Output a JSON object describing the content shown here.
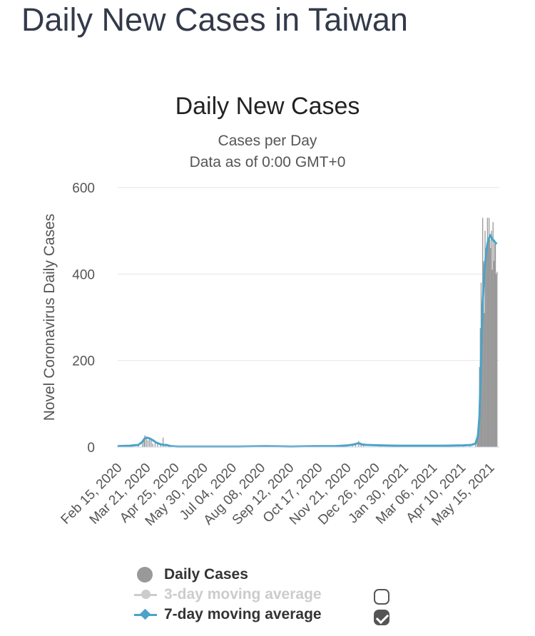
{
  "page": {
    "title": "Daily New Cases in Taiwan"
  },
  "chart_data": {
    "type": "bar",
    "title": "Daily New Cases",
    "subtitle": "Cases per Day",
    "subtitle2": "Data as of 0:00 GMT+0",
    "ylabel": "Novel Coronavirus Daily Cases",
    "xlabel": "",
    "ylim": [
      0,
      600
    ],
    "yticks": [
      0,
      200,
      400,
      600
    ],
    "grid": true,
    "xstart": "2020-02-15",
    "xend": "2021-06-09",
    "xtick_labels": [
      "Feb 15, 2020",
      "Mar 21, 2020",
      "Apr 25, 2020",
      "May 30, 2020",
      "Jul 04, 2020",
      "Aug 08, 2020",
      "Sep 12, 2020",
      "Oct 17, 2020",
      "Nov 21, 2020",
      "Dec 26, 2020",
      "Jan 30, 2021",
      "Mar 06, 2021",
      "Apr 10, 2021",
      "May 15, 2021"
    ],
    "series": [
      {
        "name": "Daily Cases",
        "kind": "bar",
        "color": "#999999",
        "points": [
          [
            "2020-02-15",
            2
          ],
          [
            "2020-02-25",
            3
          ],
          [
            "2020-03-05",
            2
          ],
          [
            "2020-03-12",
            5
          ],
          [
            "2020-03-17",
            10
          ],
          [
            "2020-03-19",
            20
          ],
          [
            "2020-03-20",
            27
          ],
          [
            "2020-03-22",
            23
          ],
          [
            "2020-03-24",
            16
          ],
          [
            "2020-03-26",
            17
          ],
          [
            "2020-03-28",
            15
          ],
          [
            "2020-03-30",
            8
          ],
          [
            "2020-04-02",
            9
          ],
          [
            "2020-04-05",
            8
          ],
          [
            "2020-04-09",
            7
          ],
          [
            "2020-04-12",
            22
          ],
          [
            "2020-04-15",
            4
          ],
          [
            "2020-04-19",
            3
          ],
          [
            "2020-04-22",
            2
          ],
          [
            "2020-05-15",
            1
          ],
          [
            "2020-07-01",
            1
          ],
          [
            "2020-08-20",
            2
          ],
          [
            "2020-10-10",
            2
          ],
          [
            "2020-11-18",
            3
          ],
          [
            "2020-12-06",
            6
          ],
          [
            "2020-12-10",
            9
          ],
          [
            "2020-12-14",
            14
          ],
          [
            "2020-12-17",
            10
          ],
          [
            "2020-12-20",
            4
          ],
          [
            "2021-01-10",
            4
          ],
          [
            "2021-01-25",
            3
          ],
          [
            "2021-02-15",
            2
          ],
          [
            "2021-03-20",
            4
          ],
          [
            "2021-04-10",
            3
          ],
          [
            "2021-04-25",
            5
          ],
          [
            "2021-05-03",
            4
          ],
          [
            "2021-05-10",
            8
          ],
          [
            "2021-05-12",
            15
          ],
          [
            "2021-05-13",
            20
          ],
          [
            "2021-05-14",
            45
          ],
          [
            "2021-05-15",
            185
          ],
          [
            "2021-05-16",
            275
          ],
          [
            "2021-05-17",
            380
          ],
          [
            "2021-05-18",
            260
          ],
          [
            "2021-05-19",
            530
          ],
          [
            "2021-05-20",
            430
          ],
          [
            "2021-05-21",
            310
          ],
          [
            "2021-05-22",
            500
          ],
          [
            "2021-05-23",
            460
          ],
          [
            "2021-05-24",
            450
          ],
          [
            "2021-05-25",
            530
          ],
          [
            "2021-05-26",
            470
          ],
          [
            "2021-05-27",
            530
          ],
          [
            "2021-05-28",
            480
          ],
          [
            "2021-05-29",
            460
          ],
          [
            "2021-05-30",
            500
          ],
          [
            "2021-05-31",
            410
          ],
          [
            "2021-06-01",
            520
          ],
          [
            "2021-06-02",
            430
          ],
          [
            "2021-06-03",
            470
          ],
          [
            "2021-06-04",
            470
          ],
          [
            "2021-06-05",
            400
          ],
          [
            "2021-06-06",
            405
          ]
        ]
      },
      {
        "name": "3-day moving average",
        "kind": "line",
        "color": "#cccccc",
        "visible": false,
        "points": []
      },
      {
        "name": "7-day moving average",
        "kind": "line",
        "color": "#4ba3c7",
        "visible": true,
        "points": [
          [
            "2020-02-15",
            2
          ],
          [
            "2020-03-01",
            3
          ],
          [
            "2020-03-12",
            5
          ],
          [
            "2020-03-17",
            12
          ],
          [
            "2020-03-20",
            20
          ],
          [
            "2020-03-22",
            22
          ],
          [
            "2020-03-26",
            20
          ],
          [
            "2020-03-30",
            16
          ],
          [
            "2020-04-03",
            11
          ],
          [
            "2020-04-08",
            7
          ],
          [
            "2020-04-12",
            5
          ],
          [
            "2020-04-16",
            5
          ],
          [
            "2020-04-22",
            2
          ],
          [
            "2020-05-01",
            1
          ],
          [
            "2020-06-01",
            1
          ],
          [
            "2020-07-15",
            1
          ],
          [
            "2020-08-20",
            2
          ],
          [
            "2020-09-20",
            1
          ],
          [
            "2020-10-20",
            2
          ],
          [
            "2020-11-15",
            2
          ],
          [
            "2020-12-01",
            4
          ],
          [
            "2020-12-08",
            6
          ],
          [
            "2020-12-14",
            9
          ],
          [
            "2020-12-18",
            6
          ],
          [
            "2020-12-24",
            5
          ],
          [
            "2021-01-10",
            4
          ],
          [
            "2021-02-01",
            3
          ],
          [
            "2021-03-01",
            3
          ],
          [
            "2021-04-01",
            3
          ],
          [
            "2021-04-25",
            4
          ],
          [
            "2021-05-05",
            5
          ],
          [
            "2021-05-10",
            8
          ],
          [
            "2021-05-13",
            25
          ],
          [
            "2021-05-15",
            70
          ],
          [
            "2021-05-17",
            200
          ],
          [
            "2021-05-19",
            330
          ],
          [
            "2021-05-21",
            400
          ],
          [
            "2021-05-23",
            440
          ],
          [
            "2021-05-25",
            470
          ],
          [
            "2021-05-27",
            483
          ],
          [
            "2021-05-29",
            490
          ],
          [
            "2021-05-31",
            480
          ],
          [
            "2021-06-02",
            478
          ],
          [
            "2021-06-04",
            472
          ],
          [
            "2021-06-06",
            470
          ]
        ]
      }
    ],
    "legend_position": "bottom"
  },
  "legend": {
    "items": [
      {
        "label": "Daily Cases",
        "color": "#999999"
      },
      {
        "label": "3-day moving average",
        "color": "#cccccc"
      },
      {
        "label": "7-day moving average",
        "color": "#4ba3c7"
      }
    ]
  }
}
